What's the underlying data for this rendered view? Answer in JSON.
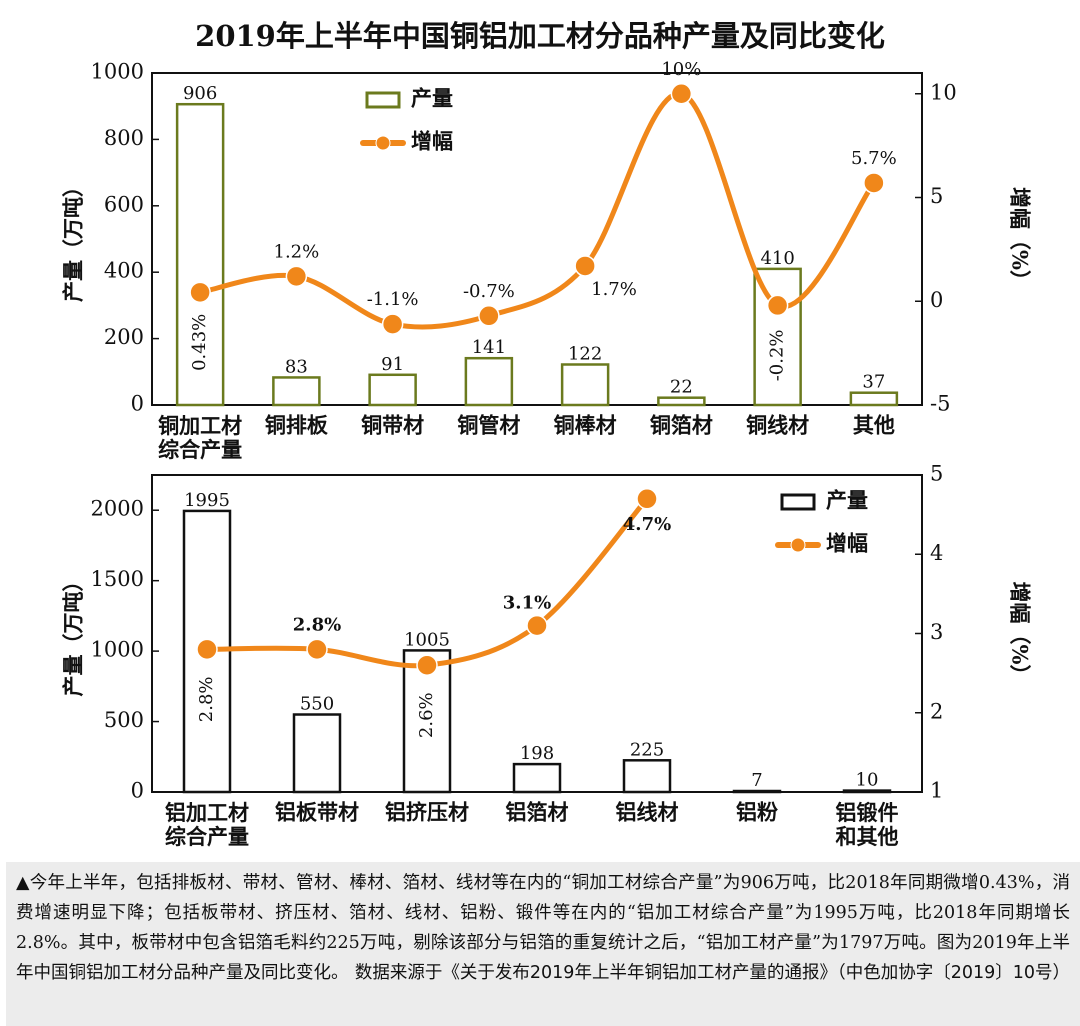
{
  "chart_data": [
    {
      "type": "bar_line",
      "title": "2019年上半年中国铜铝加工材分品种产量及同比变化",
      "y_label": "产量（万吨）",
      "y2_label": "增幅（%）",
      "categories": [
        "铜加工材综合产量",
        "铜排板",
        "铜带材",
        "铜管材",
        "铜棒材",
        "铜箔材",
        "铜线材",
        "其他"
      ],
      "series": [
        {
          "name": "产量",
          "color": "#6b7a1e",
          "values": [
            906,
            83,
            91,
            141,
            122,
            22,
            410,
            37
          ]
        },
        {
          "name": "增幅",
          "color": "#f0871a",
          "axis": "y2",
          "values": [
            0.43,
            1.2,
            -1.1,
            -0.7,
            1.7,
            10,
            -0.2,
            5.7
          ],
          "value_labels": [
            "0.43%",
            "1.2%",
            "-1.1%",
            "-0.7%",
            "1.7%",
            "10%",
            "-0.2%",
            "5.7%"
          ]
        }
      ],
      "ylim": [
        0,
        1000
      ],
      "yticks": [
        0,
        200,
        400,
        600,
        800,
        1000
      ],
      "y2lim": [
        -5,
        11
      ],
      "y2ticks": [
        -5,
        0,
        5,
        10
      ],
      "legend": "top-center"
    },
    {
      "type": "bar_line",
      "y_label": "产量（万吨）",
      "y2_label": "增幅（%）",
      "categories": [
        "铝加工材综合产量",
        "铝板带材",
        "铝挤压材",
        "铝箔材",
        "铝线材",
        "铝粉",
        "铝锻件和其他"
      ],
      "series": [
        {
          "name": "产量",
          "color": "#111111",
          "values": [
            1995,
            550,
            1005,
            198,
            225,
            7,
            10
          ]
        },
        {
          "name": "增幅",
          "color": "#f0871a",
          "axis": "y2",
          "values": [
            2.8,
            2.8,
            2.6,
            3.1,
            4.7,
            null,
            null
          ],
          "value_labels": [
            "2.8%",
            "2.8%",
            "2.6%",
            "3.1%",
            "4.7%",
            null,
            null
          ]
        }
      ],
      "ylim": [
        0,
        2250
      ],
      "yticks": [
        0,
        500,
        1000,
        1500,
        2000
      ],
      "y2lim": [
        1,
        5
      ],
      "y2ticks": [
        1,
        2,
        3,
        4,
        5
      ],
      "legend": "top-right"
    }
  ],
  "caption": "▲今年上半年，包括排板材、带材、管材、棒材、箔材、线材等在内的“铜加工材综合产量”为906万吨，比2018年同期微增0.43%，消费增速明显下降；包括板带材、挤压材、箔材、线材、铝粉、锻件等在内的“铝加工材综合产量”为1995万吨，比2018年同期增长2.8%。其中，板带材中包含铝箔毛料约225万吨，剔除该部分与铝箔的重复统计之后，“铝加工材产量”为1797万吨。图为2019年上半年中国铜铝加工材分品种产量及同比变化。",
  "source": "数据来源于《关于发布2019年上半年铜铝加工材产量的通报》（中色加协字〔2019〕10号）"
}
